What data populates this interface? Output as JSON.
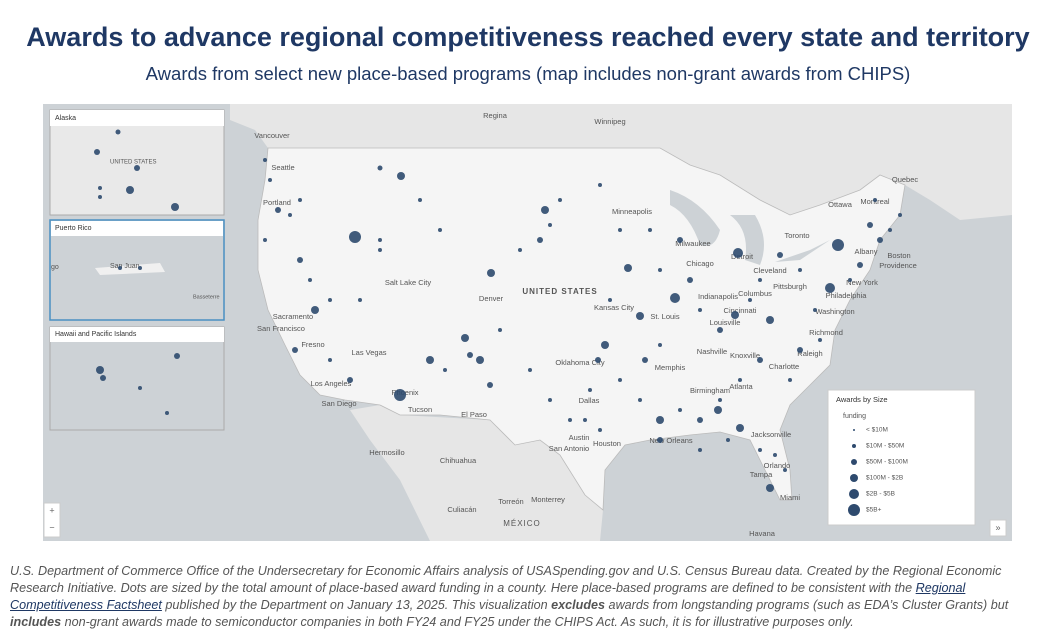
{
  "header": {
    "title": "Awards to advance regional competitiveness reached every state and territory",
    "subtitle": "Awards from select new place-based programs (map includes non-grant awards from CHIPS)"
  },
  "insets": {
    "alaska": {
      "title": "Alaska",
      "labels": [
        "UNITED STATES"
      ]
    },
    "puerto_rico": {
      "title": "Puerto Rico",
      "labels": [
        "San Juan",
        "Basseterre",
        "go"
      ]
    },
    "hawaii": {
      "title": "Hawaii and Pacific Islands"
    }
  },
  "map": {
    "labels": [
      "Regina",
      "Winnipeg",
      "Vancouver",
      "Seattle",
      "Portland",
      "Minneapolis",
      "Milwaukee",
      "Chicago",
      "Detroit",
      "Toronto",
      "Ottawa",
      "Montreal",
      "Quebec",
      "Albany",
      "Boston",
      "Providence",
      "New York",
      "Philadelphia",
      "Pittsburgh",
      "Cleveland",
      "Columbus",
      "Indianapolis",
      "Cincinnati",
      "Louisville",
      "St. Louis",
      "Kansas City",
      "Denver",
      "Salt Lake City",
      "Sacramento",
      "San Francisco",
      "Fresno",
      "Las Vegas",
      "Los Angeles",
      "San Diego",
      "Phoenix",
      "Tucson",
      "El Paso",
      "Oklahoma City",
      "Dallas",
      "Austin",
      "San Antonio",
      "Houston",
      "Memphis",
      "Nashville",
      "Knoxville",
      "Atlanta",
      "Birmingham",
      "Charlotte",
      "Raleigh",
      "Richmond",
      "Washington",
      "New Orleans",
      "Jacksonville",
      "Orlando",
      "Tampa",
      "Miami",
      "Havana",
      "Monterrey",
      "Chihuahua",
      "Hermosillo",
      "Torreón",
      "Culiacán"
    ],
    "countries": [
      "UNITED STATES",
      "MÉXICO"
    ]
  },
  "legend": {
    "title": "Awards by Size",
    "subtitle": "funding",
    "items": [
      "< $10M",
      "$10M - $50M",
      "$50M - $100M",
      "$100M - $2B",
      "$2B - $5B",
      "$5B+"
    ]
  },
  "controls": {
    "zoom_in": "+",
    "zoom_out": "−",
    "expand": "»"
  },
  "footnote": {
    "part1": "U.S. Department of Commerce Office of the Undersecretary for Economic Affairs analysis of USASpending.gov and U.S. Census Bureau data. Created by the Regional Economic Research Initiative. Dots are sized by the total amount of place-based award funding in a county. Here place-based programs are defined to be consistent with the ",
    "link": "Regional Competitiveness Factsheet",
    "part2": " published by the Department on January 13, 2025. This visualization ",
    "bold1": "excludes",
    "part3": " awards from longstanding programs (such as EDA’s Cluster Grants) but ",
    "bold2": "includes",
    "part4": " non-grant awards made to semiconductor companies in both FY24 and FY25 under the CHIPS Act. As such, it is for illustrative purposes only."
  }
}
